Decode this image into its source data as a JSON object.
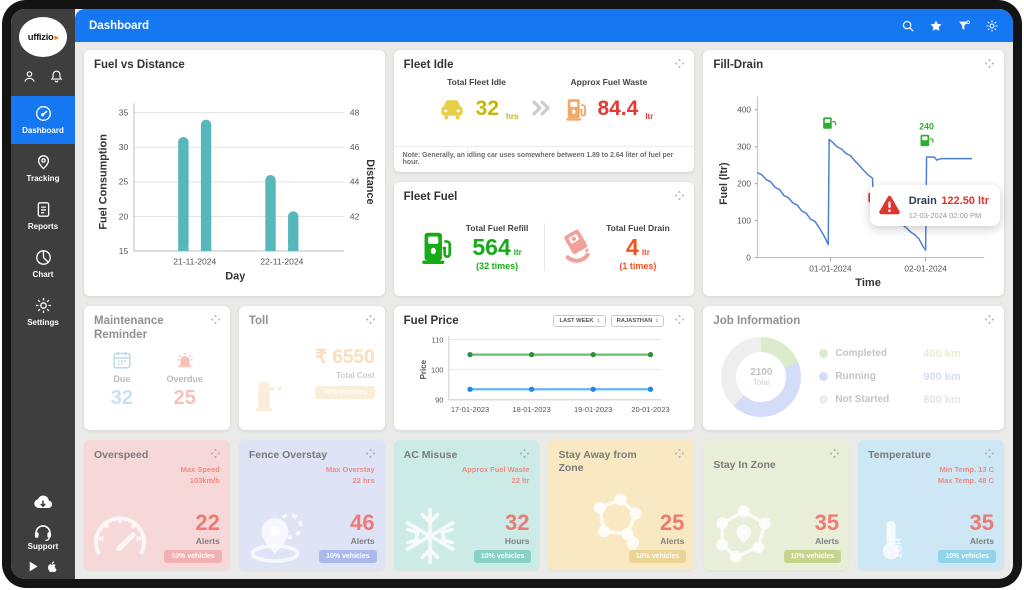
{
  "brand": {
    "logo_text": "uffizio"
  },
  "topbar": {
    "title": "Dashboard"
  },
  "sidebar": {
    "items": [
      {
        "label": "Dashboard"
      },
      {
        "label": "Tracking"
      },
      {
        "label": "Reports"
      },
      {
        "label": "Chart"
      },
      {
        "label": "Settings"
      }
    ],
    "support_label": "Support"
  },
  "cards": {
    "fleet_idle": {
      "title": "Fleet Idle",
      "total_label": "Total Fleet Idle",
      "total_value": "32",
      "total_unit": "hrs",
      "waste_label": "Approx Fuel Waste",
      "waste_value": "84.4",
      "waste_unit": "ltr",
      "note": "Note: Generally, an idling car uses somewhere between 1.89 to 2.64 liter of fuel per hour."
    },
    "fleet_fuel": {
      "title": "Fleet Fuel",
      "refill_label": "Total Fuel Refill",
      "refill_value": "564",
      "refill_unit": "ltr",
      "refill_times": "(32 times)",
      "drain_label": "Total Fuel Drain",
      "drain_value": "4",
      "drain_unit": "ltr",
      "drain_times": "(1 times)"
    },
    "maintenance": {
      "title": "Maintenance Reminder",
      "due_label": "Due",
      "due_value": "32",
      "overdue_label": "Overdue",
      "overdue_value": "25"
    },
    "toll": {
      "title": "Toll",
      "value": "₹ 6550",
      "label": "Total Cost",
      "badge": "10% vehicles"
    },
    "fuel_price": {
      "filters": [
        "LAST WEEK",
        "RAJASTHAN"
      ]
    },
    "overspeed": {
      "title": "Overspeed",
      "sub1": "Max Speed",
      "sub2": "103km/h",
      "value": "22",
      "unit": "Alerts",
      "badge": "10% vehicles"
    },
    "fence_overstay": {
      "title": "Fence Overstay",
      "sub1": "Max Overstay",
      "sub2": "22 hrs",
      "value": "46",
      "unit": "Alerts",
      "badge": "10% vehicles"
    },
    "ac_misuse": {
      "title": "AC Misuse",
      "sub1": "Approx Fuel Waste",
      "sub2": "22 ltr",
      "value": "32",
      "unit": "Hours",
      "badge": "10% vehicles"
    },
    "stay_away": {
      "title": "Stay Away from Zone",
      "value": "25",
      "unit": "Alerts",
      "badge": "10% vehicles"
    },
    "stay_in": {
      "title": "Stay In Zone",
      "value": "35",
      "unit": "Alerts",
      "badge": "10% vehicles"
    },
    "temperature": {
      "title": "Temperature",
      "sub1": "Min Temp. 13 C",
      "sub2": "Max Temp. 48 C",
      "value": "35",
      "unit": "Alerts",
      "badge": "10% vehicles"
    }
  },
  "chart_data": [
    {
      "id": "fuel_vs_distance",
      "type": "bar",
      "title": "Fuel vs Distance",
      "categories": [
        "21-11-2024",
        "22-11-2024"
      ],
      "series": [
        {
          "name": "Fuel Consumption",
          "axis": "left",
          "values": [
            31.5,
            26
          ]
        },
        {
          "name": "Distance",
          "axis": "right",
          "values": [
            47.6,
            42.3
          ]
        }
      ],
      "xlabel": "Day",
      "y_left": {
        "label": "Fuel Consumption",
        "ticks": [
          15,
          20,
          25,
          30,
          35
        ],
        "min": 15,
        "max": 35
      },
      "y_right": {
        "label": "Distance",
        "ticks": [
          42,
          44,
          46,
          48
        ],
        "min": 40,
        "max": 48
      },
      "bar_color": "#57b7ba",
      "grid": true
    },
    {
      "id": "fill_drain",
      "type": "line",
      "title": "Fill-Drain",
      "xlabel": "Time",
      "ylabel": "Fuel (ltr)",
      "y_ticks": [
        0,
        100,
        200,
        300,
        400
      ],
      "ylim": [
        0,
        400
      ],
      "x_ticks": [
        {
          "t": 33,
          "label": "01-01-2024"
        },
        {
          "t": 76,
          "label": "02-01-2024"
        }
      ],
      "line_color": "#4a7fd4",
      "points": [
        [
          0,
          230
        ],
        [
          2,
          224
        ],
        [
          4,
          211
        ],
        [
          6,
          205
        ],
        [
          8,
          190
        ],
        [
          10,
          184
        ],
        [
          12,
          168
        ],
        [
          14,
          162
        ],
        [
          16,
          148
        ],
        [
          18,
          142
        ],
        [
          20,
          126
        ],
        [
          22,
          120
        ],
        [
          24,
          104
        ],
        [
          26,
          98
        ],
        [
          28,
          80
        ],
        [
          30,
          60
        ],
        [
          32,
          35
        ],
        [
          32.4,
          320
        ],
        [
          34,
          312
        ],
        [
          36,
          300
        ],
        [
          38,
          294
        ],
        [
          40,
          282
        ],
        [
          42,
          276
        ],
        [
          44,
          262
        ],
        [
          46,
          250
        ],
        [
          48,
          236
        ],
        [
          50,
          224
        ],
        [
          52,
          215
        ],
        [
          52.4,
          140
        ],
        [
          55,
          138
        ],
        [
          57,
          128
        ],
        [
          59,
          120
        ],
        [
          61,
          110
        ],
        [
          63,
          102
        ],
        [
          65,
          90
        ],
        [
          67,
          82
        ],
        [
          69,
          70
        ],
        [
          71,
          62
        ],
        [
          73,
          50
        ],
        [
          75,
          28
        ],
        [
          76,
          20
        ],
        [
          76.4,
          272
        ],
        [
          80,
          272
        ],
        [
          81,
          264
        ],
        [
          83,
          268
        ],
        [
          97,
          268
        ]
      ],
      "markers": [
        {
          "kind": "refill",
          "t": 32.4,
          "v": 352,
          "label": ""
        },
        {
          "kind": "refill",
          "t": 76.4,
          "v": 305,
          "label": "240"
        },
        {
          "kind": "drain",
          "t": 52.4,
          "v": 152,
          "label": ""
        }
      ],
      "tooltip": {
        "title": "Drain",
        "value": "122.50 ltr",
        "time": "12-03-2024 02:00 PM"
      }
    },
    {
      "id": "fuel_price",
      "type": "line",
      "title": "Fuel Price",
      "ylabel": "Price",
      "y_ticks": [
        90,
        100,
        110
      ],
      "ylim": [
        90,
        110
      ],
      "categories": [
        "17-01-2023",
        "18-01-2023",
        "19-01-2023",
        "20-01-2023"
      ],
      "series": [
        {
          "name": "petrol",
          "color": "#6abf69",
          "dot_color": "#2f8f3c",
          "values": [
            105,
            105,
            105,
            105
          ]
        },
        {
          "name": "diesel",
          "color": "#64b5f6",
          "dot_color": "#1e88e5",
          "values": [
            93.5,
            93.5,
            93.5,
            93.5
          ]
        }
      ],
      "grid": true
    },
    {
      "id": "job_information",
      "type": "pie",
      "title": "Job Information",
      "total": "2100",
      "total_label": "Total",
      "segments": [
        {
          "label": "Completed",
          "value": 400,
          "display": "400 km",
          "color": "#bcd89d",
          "value_color": "#ccdf9f"
        },
        {
          "label": "Running",
          "value": 900,
          "display": "900 km",
          "color": "#a9bdf0",
          "value_color": "#a9bdf2"
        },
        {
          "label": "Not Started",
          "value": 800,
          "display": "800 km",
          "color": "#dedede",
          "value_color": "#c9c9c9"
        }
      ]
    }
  ],
  "colors": {
    "accent_blue": "#1677f2",
    "bar_teal": "#57b7ba",
    "alert_red": "#e53935",
    "idle_yellow": "#c9b408",
    "refill_green": "#17ab17",
    "drain_red": "#f4511e"
  }
}
